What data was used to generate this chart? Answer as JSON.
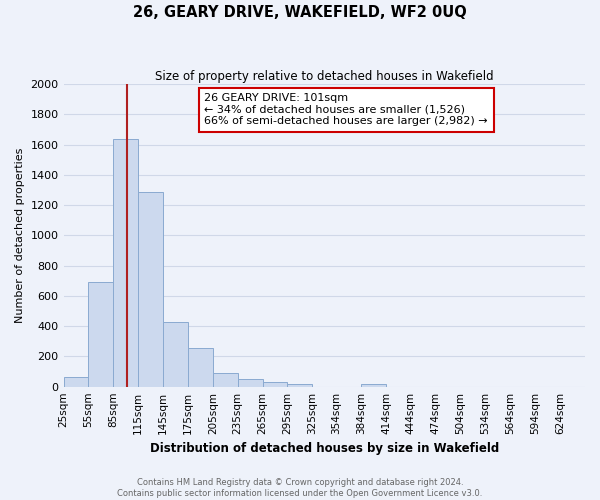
{
  "title": "26, GEARY DRIVE, WAKEFIELD, WF2 0UQ",
  "subtitle": "Size of property relative to detached houses in Wakefield",
  "xlabel": "Distribution of detached houses by size in Wakefield",
  "ylabel": "Number of detached properties",
  "bar_color": "#ccd9ee",
  "bar_edge_color": "#8aaad0",
  "vline_x": 101,
  "vline_color": "#b02020",
  "categories": [
    "25sqm",
    "55sqm",
    "85sqm",
    "115sqm",
    "145sqm",
    "175sqm",
    "205sqm",
    "235sqm",
    "265sqm",
    "295sqm",
    "325sqm",
    "354sqm",
    "384sqm",
    "414sqm",
    "444sqm",
    "474sqm",
    "504sqm",
    "534sqm",
    "564sqm",
    "594sqm",
    "624sqm"
  ],
  "bin_edges": [
    25,
    55,
    85,
    115,
    145,
    175,
    205,
    235,
    265,
    295,
    325,
    354,
    384,
    414,
    444,
    474,
    504,
    534,
    564,
    594,
    624,
    654
  ],
  "values": [
    65,
    690,
    1635,
    1285,
    430,
    255,
    90,
    50,
    30,
    20,
    0,
    0,
    15,
    0,
    0,
    0,
    0,
    0,
    0,
    0,
    0
  ],
  "ylim": [
    0,
    2000
  ],
  "yticks": [
    0,
    200,
    400,
    600,
    800,
    1000,
    1200,
    1400,
    1600,
    1800,
    2000
  ],
  "annotation_text": "26 GEARY DRIVE: 101sqm\n← 34% of detached houses are smaller (1,526)\n66% of semi-detached houses are larger (2,982) →",
  "annotation_box_color": "white",
  "annotation_box_edge": "#cc0000",
  "footer_line1": "Contains HM Land Registry data © Crown copyright and database right 2024.",
  "footer_line2": "Contains public sector information licensed under the Open Government Licence v3.0.",
  "background_color": "#eef2fa",
  "grid_color": "#d0d8e8"
}
